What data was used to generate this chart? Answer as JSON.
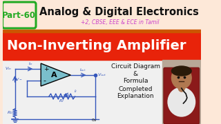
{
  "bg_top_color": "#fde8d8",
  "banner_color": "#e8230a",
  "part_box_color": "#fde8d8",
  "part_box_border": "#22aa22",
  "part_text": "Part-60",
  "part_text_color": "#22aa22",
  "title_main": "Analog & Digital Electronics",
  "title_main_color": "#111111",
  "subtitle": "+2, CBSE, EEE & ECE in Tamil",
  "subtitle_color": "#cc44cc",
  "banner_text": "Non-Inverting Amplifier",
  "banner_text_color": "#ffffff",
  "right_text_lines": [
    "Circuit Diagram",
    "&",
    "Formula",
    "Completed",
    "Explanation"
  ],
  "right_text_color": "#111111",
  "op_amp_fill": "#7abfcc",
  "op_amp_border": "#000000",
  "wire_color": "#3355bb",
  "label_color": "#3355bb",
  "separator_color": "#cc5500",
  "person_bg": "#c8b8a0",
  "chair_color": "#8b1a1a",
  "face_color": "#b07850",
  "shirt_color": "#e8e8e8"
}
